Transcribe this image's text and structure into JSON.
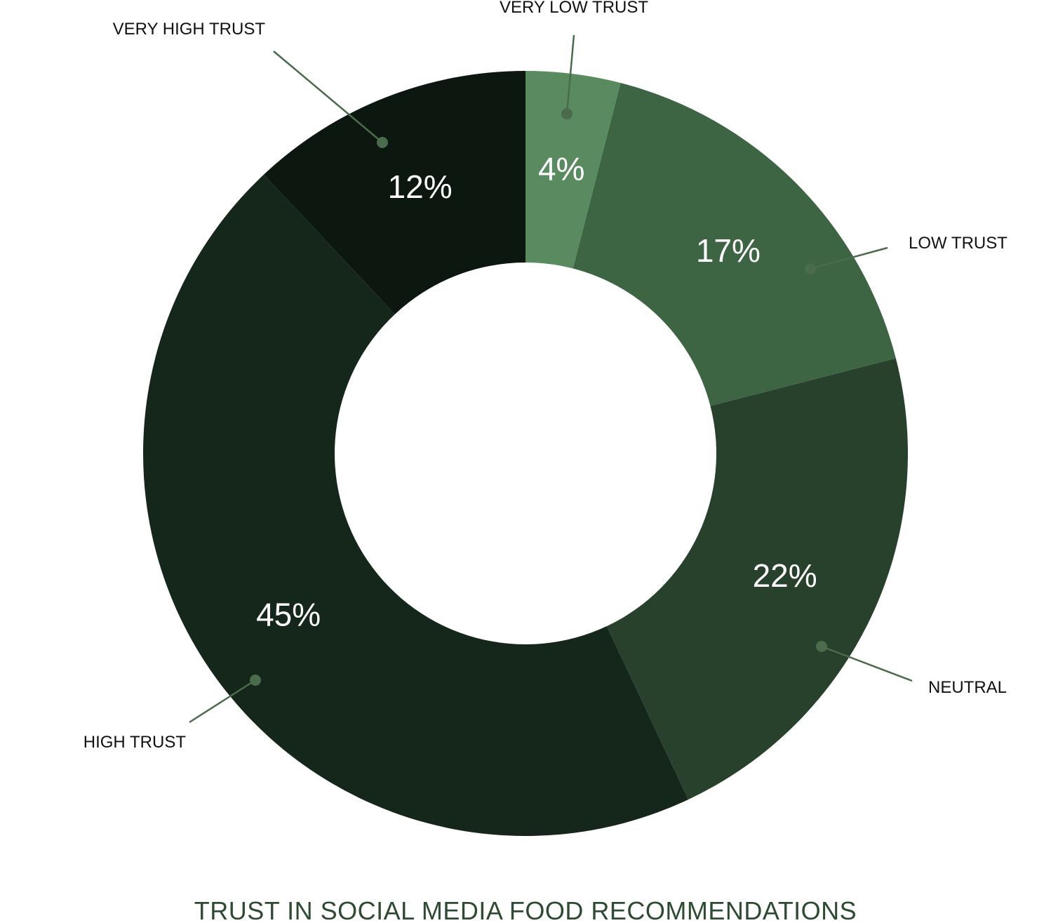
{
  "chart_data": {
    "type": "pie",
    "donut": true,
    "title": "TRUST IN SOCIAL MEDIA FOOD RECOMMENDATIONS",
    "categories": [
      "VERY LOW TRUST",
      "LOW TRUST",
      "NEUTRAL",
      "HIGH TRUST",
      "VERY HIGH TRUST"
    ],
    "values": [
      4,
      17,
      22,
      45,
      12
    ],
    "value_labels": [
      "4%",
      "17%",
      "22%",
      "45%",
      "12%"
    ],
    "unit": "%",
    "colors": [
      "#5a8a5f",
      "#3d6443",
      "#28412c",
      "#15271a",
      "#0c170f"
    ],
    "legend": "none"
  }
}
